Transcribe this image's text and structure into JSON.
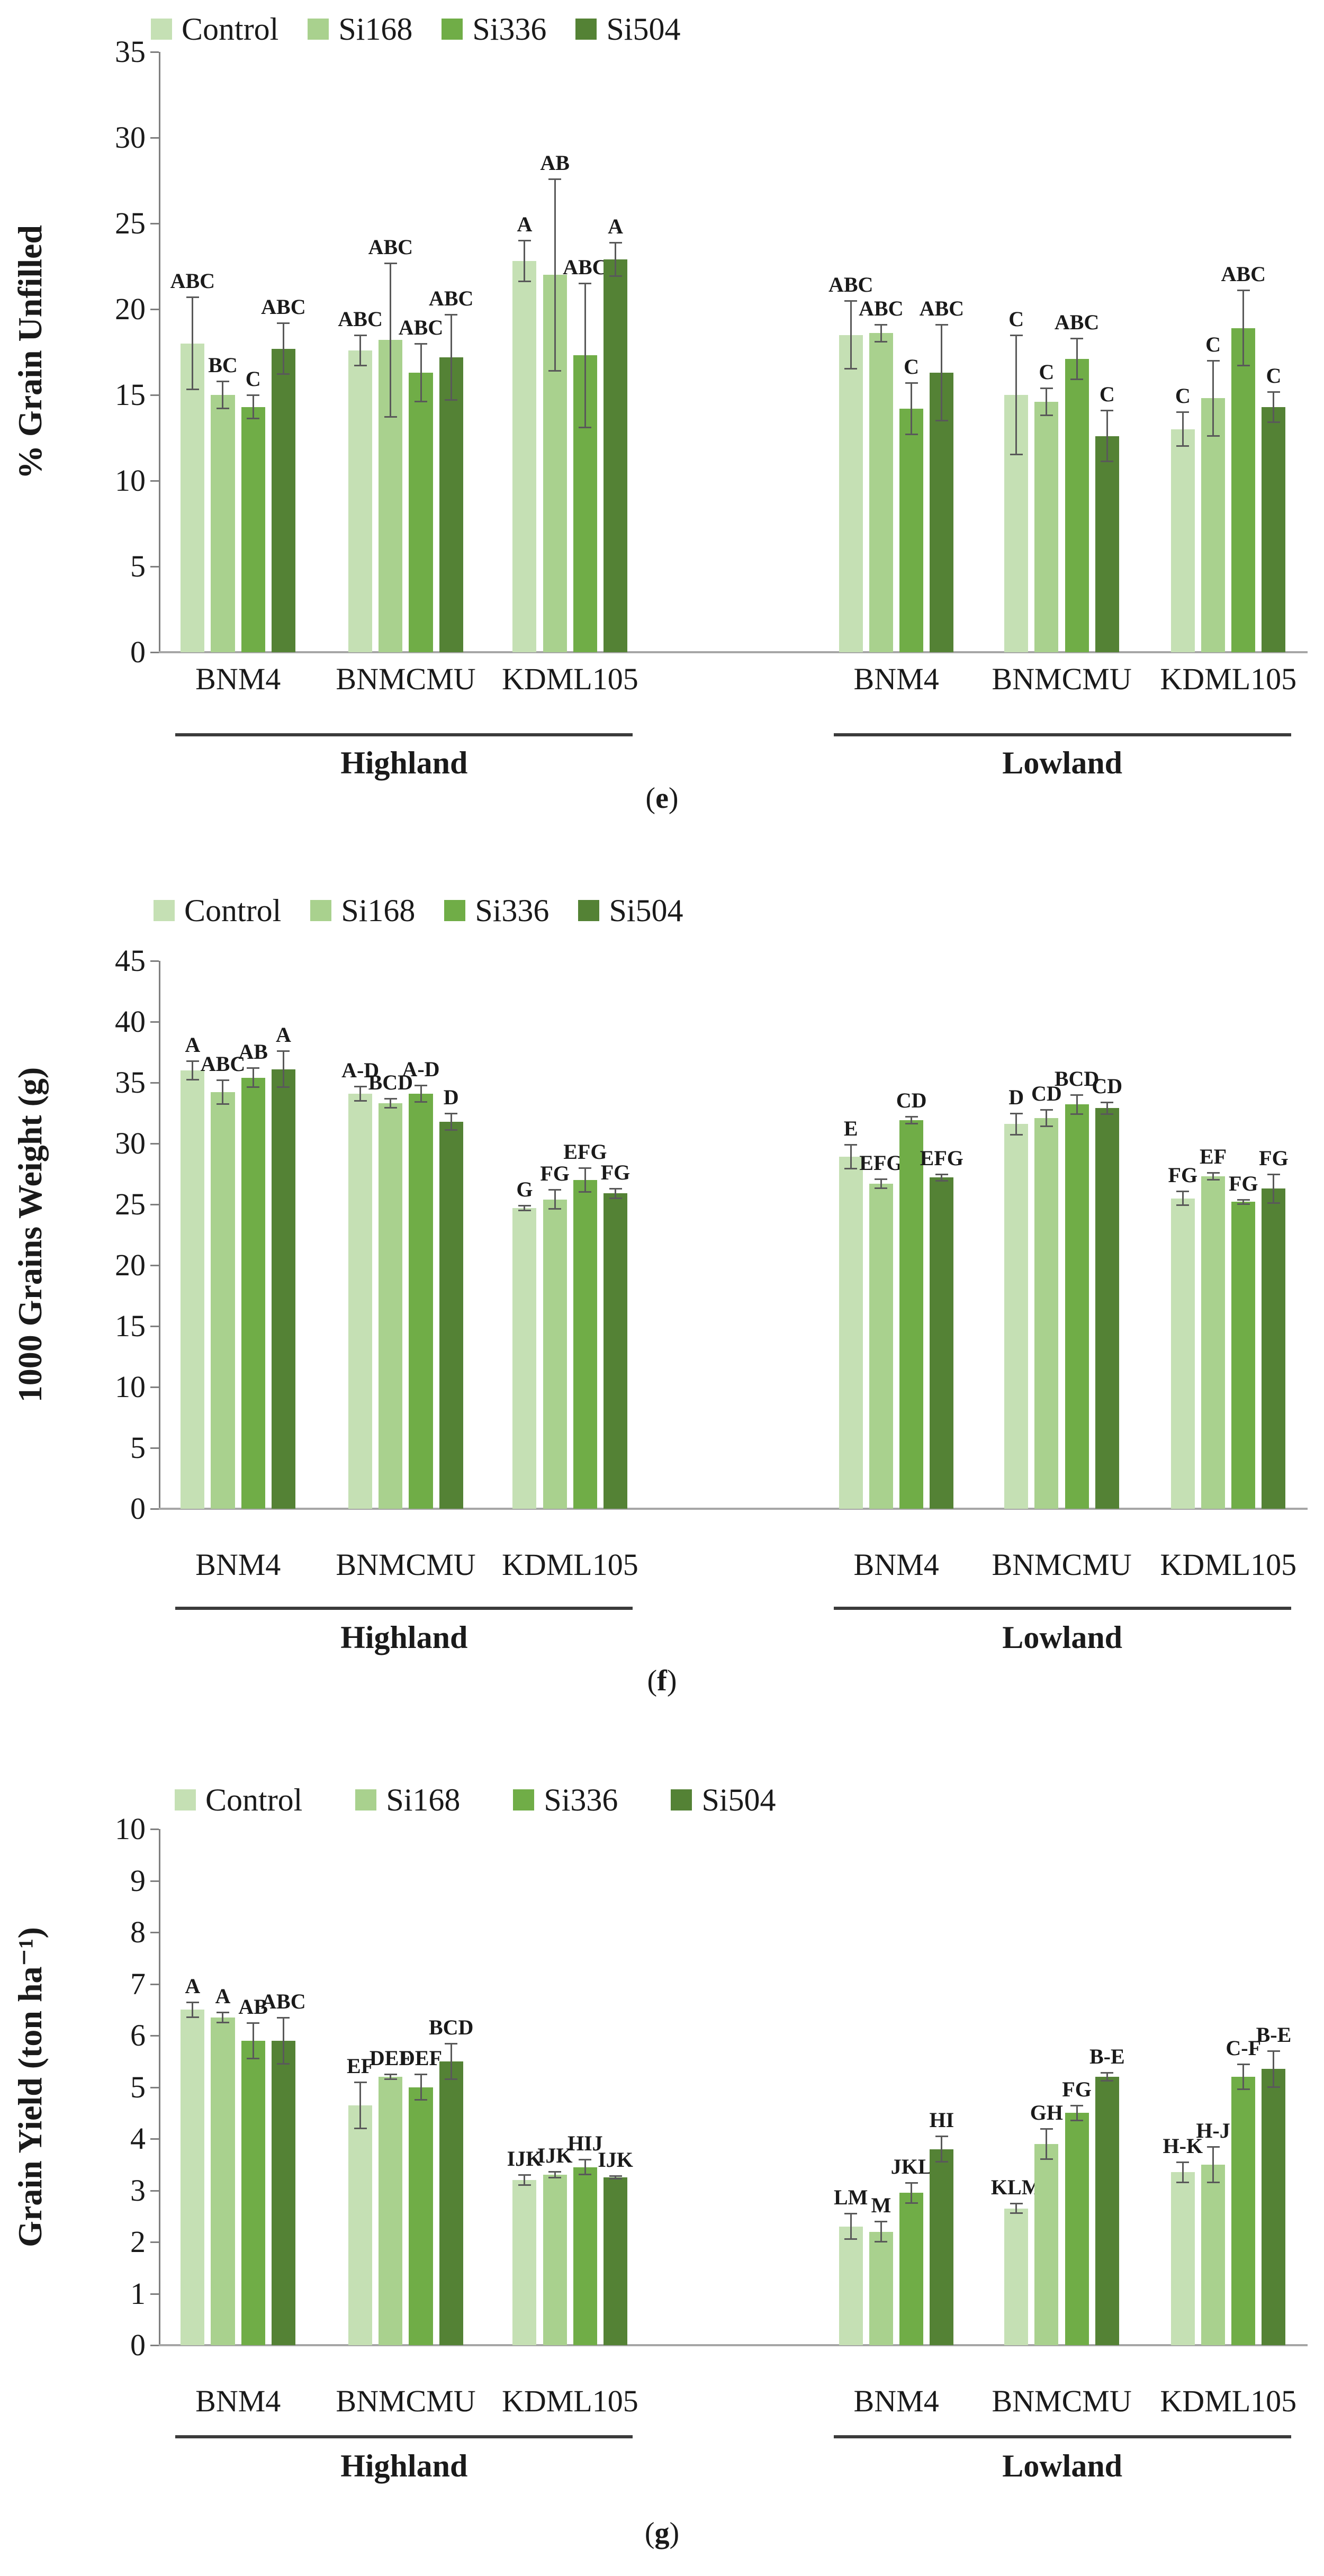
{
  "figure": {
    "series": [
      {
        "name": "Control",
        "color": "#c5e0b4"
      },
      {
        "name": "Si168",
        "color": "#a9d18e"
      },
      {
        "name": "Si336",
        "color": "#70ad47"
      },
      {
        "name": "Si504",
        "color": "#548235"
      }
    ],
    "locations": [
      "Highland",
      "Lowland"
    ],
    "cultivars": [
      "BNM4",
      "BNMCMU",
      "KDML105"
    ],
    "error_bar_color": "#595959",
    "axis_color": "#7f7f7f",
    "baseline_color": "#a6a6a6"
  },
  "chart_data": [
    {
      "id": "e",
      "type": "bar",
      "caption_letter": "e",
      "ylabel": "% Grain Unfilled",
      "xlabel": "",
      "ylim": [
        0,
        35
      ],
      "ystep": 5,
      "grid": false,
      "legend_position": "top-left",
      "series_names": [
        "Control",
        "Si168",
        "Si336",
        "Si504"
      ],
      "groups": [
        {
          "location": "Highland",
          "cultivar": "BNM4",
          "values": [
            18.0,
            15.0,
            14.3,
            17.7
          ],
          "errors": [
            2.7,
            0.8,
            0.7,
            1.5
          ],
          "letters": [
            "ABC",
            "BC",
            "C",
            "ABC"
          ]
        },
        {
          "location": "Highland",
          "cultivar": "BNMCMU",
          "values": [
            17.6,
            18.2,
            16.3,
            17.2
          ],
          "errors": [
            0.9,
            4.5,
            1.7,
            2.5
          ],
          "letters": [
            "ABC",
            "ABC",
            "ABC",
            "ABC"
          ]
        },
        {
          "location": "Highland",
          "cultivar": "KDML105",
          "values": [
            22.8,
            22.0,
            17.3,
            22.9
          ],
          "errors": [
            1.2,
            5.6,
            4.2,
            1.0
          ],
          "letters": [
            "A",
            "AB",
            "ABC",
            "A"
          ]
        },
        {
          "location": "Lowland",
          "cultivar": "BNM4",
          "values": [
            18.5,
            18.6,
            14.2,
            16.3
          ],
          "errors": [
            2.0,
            0.5,
            1.5,
            2.8
          ],
          "letters": [
            "ABC",
            "ABC",
            "C",
            "ABC"
          ]
        },
        {
          "location": "Lowland",
          "cultivar": "BNMCMU",
          "values": [
            15.0,
            14.6,
            17.1,
            12.6
          ],
          "errors": [
            3.5,
            0.8,
            1.2,
            1.5
          ],
          "letters": [
            "C",
            "C",
            "ABC",
            "C"
          ]
        },
        {
          "location": "Lowland",
          "cultivar": "KDML105",
          "values": [
            13.0,
            14.8,
            18.9,
            14.3
          ],
          "errors": [
            1.0,
            2.2,
            2.2,
            0.9
          ],
          "letters": [
            "C",
            "C",
            "ABC",
            "C"
          ]
        }
      ]
    },
    {
      "id": "f",
      "type": "bar",
      "caption_letter": "f",
      "ylabel": "1000 Grains Weight (g)",
      "xlabel": "",
      "ylim": [
        0,
        45
      ],
      "ystep": 5,
      "grid": false,
      "legend_position": "top-left",
      "series_names": [
        "Control",
        "Si168",
        "Si336",
        "Si504"
      ],
      "groups": [
        {
          "location": "Highland",
          "cultivar": "BNM4",
          "values": [
            36.0,
            34.2,
            35.4,
            36.1
          ],
          "errors": [
            0.8,
            1.0,
            0.8,
            1.5
          ],
          "letters": [
            "A",
            "ABC",
            "AB",
            "A"
          ]
        },
        {
          "location": "Highland",
          "cultivar": "BNMCMU",
          "values": [
            34.1,
            33.3,
            34.1,
            31.8
          ],
          "errors": [
            0.6,
            0.4,
            0.7,
            0.7
          ],
          "letters": [
            "A-D",
            "BCD",
            "A-D",
            "D"
          ]
        },
        {
          "location": "Highland",
          "cultivar": "KDML105",
          "values": [
            24.7,
            25.4,
            27.0,
            25.9
          ],
          "errors": [
            0.2,
            0.8,
            1.0,
            0.4
          ],
          "letters": [
            "G",
            "FG",
            "EFG",
            "FG"
          ]
        },
        {
          "location": "Lowland",
          "cultivar": "BNM4",
          "values": [
            28.9,
            26.7,
            31.9,
            27.2
          ],
          "errors": [
            1.0,
            0.4,
            0.3,
            0.3
          ],
          "letters": [
            "E",
            "EFG",
            "CD",
            "EFG"
          ]
        },
        {
          "location": "Lowland",
          "cultivar": "BNMCMU",
          "values": [
            31.6,
            32.1,
            33.2,
            32.9
          ],
          "errors": [
            0.9,
            0.7,
            0.8,
            0.5
          ],
          "letters": [
            "D",
            "CD",
            "BCD",
            "CD"
          ]
        },
        {
          "location": "Lowland",
          "cultivar": "KDML105",
          "values": [
            25.5,
            27.3,
            25.2,
            26.3
          ],
          "errors": [
            0.6,
            0.3,
            0.2,
            1.2
          ],
          "letters": [
            "FG",
            "EF",
            "FG",
            "FG"
          ]
        }
      ]
    },
    {
      "id": "g",
      "type": "bar",
      "caption_letter": "g",
      "ylabel": "Grain Yield  (ton ha⁻¹)",
      "xlabel": "",
      "ylim": [
        0,
        10
      ],
      "ystep": 1,
      "grid": false,
      "legend_position": "top-left",
      "series_names": [
        "Control",
        "Si168",
        "Si336",
        "Si504"
      ],
      "groups": [
        {
          "location": "Highland",
          "cultivar": "BNM4",
          "values": [
            6.5,
            6.35,
            5.9,
            5.9
          ],
          "errors": [
            0.15,
            0.1,
            0.35,
            0.45
          ],
          "letters": [
            "A",
            "A",
            "AB",
            "ABC"
          ]
        },
        {
          "location": "Highland",
          "cultivar": "BNMCMU",
          "values": [
            4.65,
            5.2,
            5.0,
            5.5
          ],
          "errors": [
            0.45,
            0.05,
            0.25,
            0.35
          ],
          "letters": [
            "EF",
            "DEF",
            "DEF",
            "BCD"
          ]
        },
        {
          "location": "Highland",
          "cultivar": "KDML105",
          "values": [
            3.2,
            3.3,
            3.45,
            3.25
          ],
          "errors": [
            0.1,
            0.06,
            0.15,
            0.03
          ],
          "letters": [
            "IJK",
            "IJK",
            "HIJ",
            "IJK"
          ]
        },
        {
          "location": "Lowland",
          "cultivar": "BNM4",
          "values": [
            2.3,
            2.2,
            2.95,
            3.8
          ],
          "errors": [
            0.25,
            0.2,
            0.2,
            0.25
          ],
          "letters": [
            "LM",
            "M",
            "JKL",
            "HI"
          ]
        },
        {
          "location": "Lowland",
          "cultivar": "BNMCMU",
          "values": [
            2.65,
            3.9,
            4.5,
            5.2
          ],
          "errors": [
            0.1,
            0.3,
            0.15,
            0.08
          ],
          "letters": [
            "KLM",
            "GH",
            "FG",
            "B-E"
          ]
        },
        {
          "location": "Lowland",
          "cultivar": "KDML105",
          "values": [
            3.35,
            3.5,
            5.2,
            5.35
          ],
          "errors": [
            0.2,
            0.35,
            0.25,
            0.35
          ],
          "letters": [
            "H-K",
            "H-J",
            "C-F",
            "B-E"
          ]
        }
      ]
    }
  ]
}
